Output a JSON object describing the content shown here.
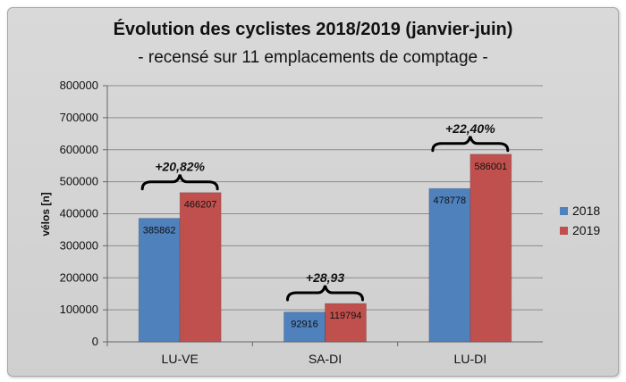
{
  "chart_data": {
    "type": "bar",
    "title": "Évolution des cyclistes 2018/2019 (janvier-juin)",
    "subtitle": "- recensé sur 11 emplacements de comptage -",
    "xlabel": "",
    "ylabel": "vélos [n]",
    "ylim": [
      0,
      800000
    ],
    "yticks": [
      "0",
      "100000",
      "200000",
      "300000",
      "400000",
      "500000",
      "600000",
      "700000",
      "800000"
    ],
    "categories": [
      "LU-VE",
      "SA-DI",
      "LU-DI"
    ],
    "series": [
      {
        "name": "2018",
        "color": "#4f81bd",
        "values": [
          385862,
          92916,
          478778
        ]
      },
      {
        "name": "2019",
        "color": "#c0504d",
        "values": [
          466207,
          119794,
          586001
        ]
      }
    ],
    "annotations": [
      "+20,82%",
      "+28,93",
      "+22,40%"
    ],
    "grid": true,
    "legend_position": "right"
  }
}
